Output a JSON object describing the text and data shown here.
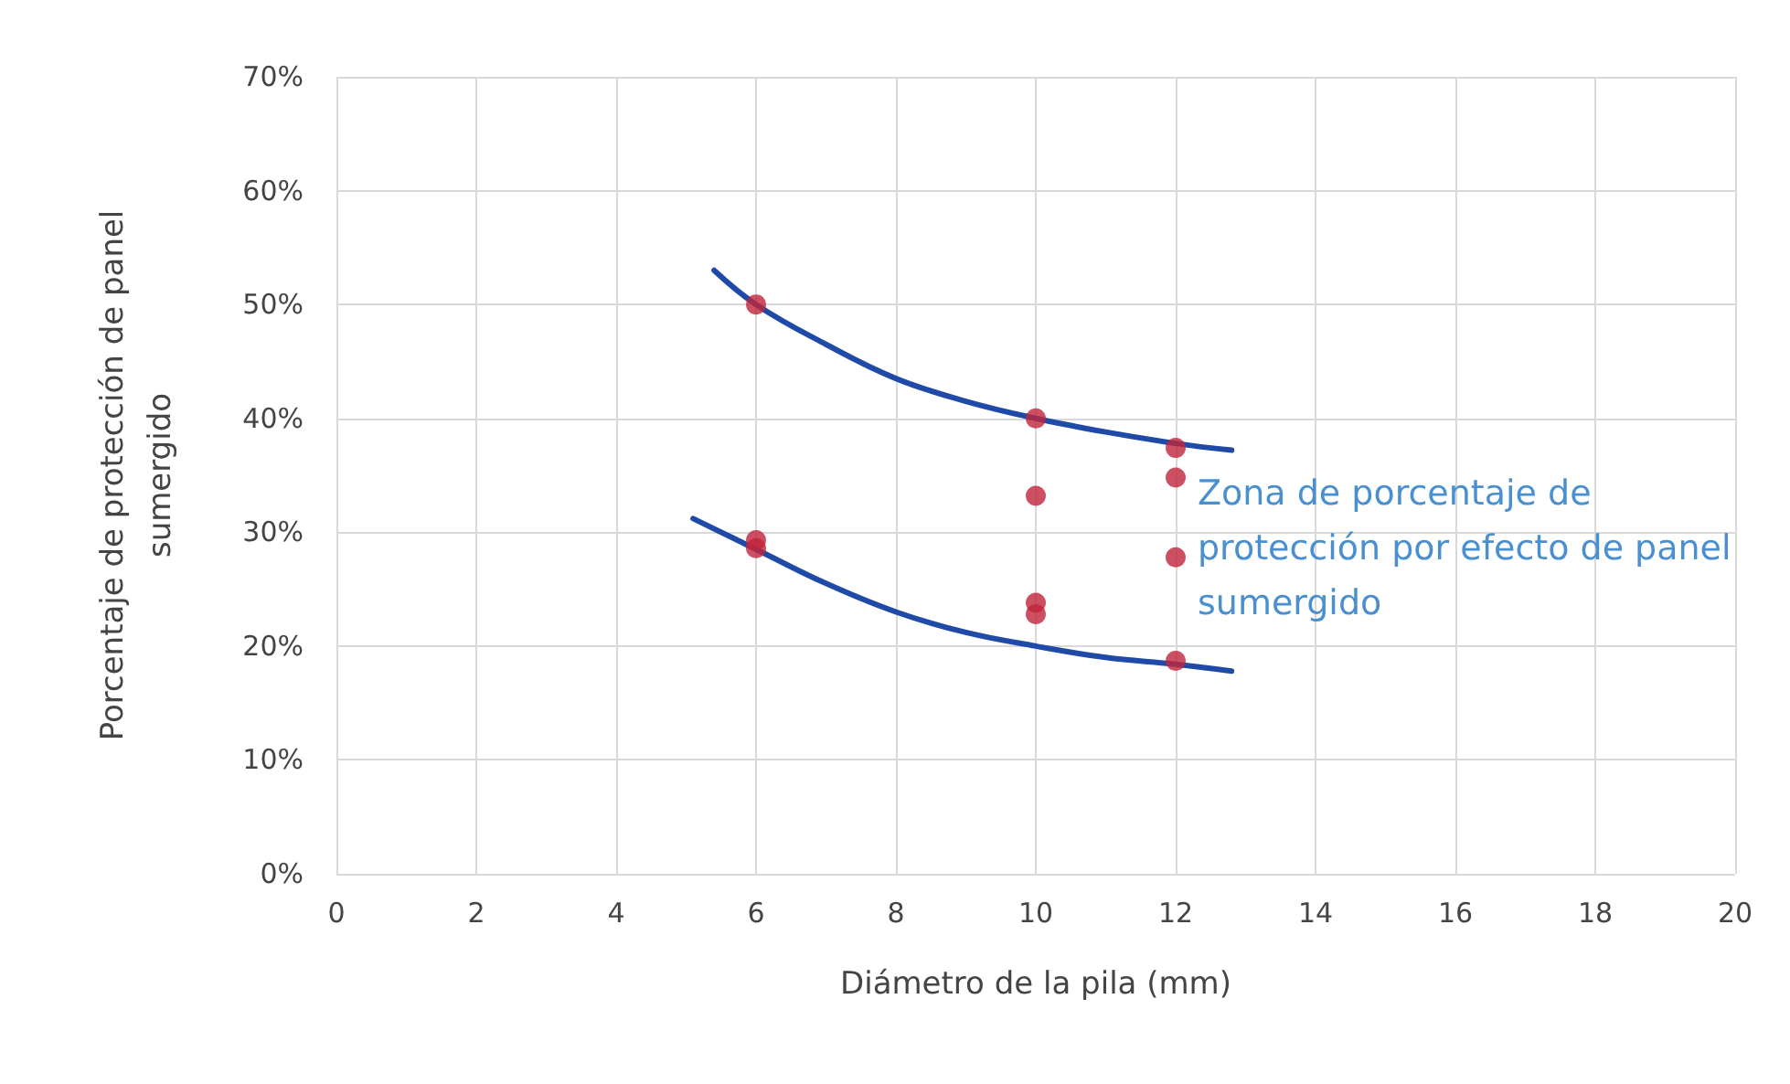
{
  "chart_data": {
    "type": "scatter",
    "xlabel": "Diámetro de la pila (mm)",
    "ylabel": "Porcentaje de protección de panel sumergido",
    "annotations": [
      "Zona de porcentaje de protección por efecto de panel sumergido"
    ],
    "xlim": [
      0,
      20
    ],
    "xticks": [
      0,
      2,
      4,
      6,
      8,
      10,
      12,
      14,
      16,
      18,
      20
    ],
    "ylim": [
      0,
      70
    ],
    "yticks": [
      {
        "value": 0,
        "label": "0%"
      },
      {
        "value": 10,
        "label": "10%"
      },
      {
        "value": 20,
        "label": "20%"
      },
      {
        "value": 30,
        "label": "30%"
      },
      {
        "value": 40,
        "label": "40%"
      },
      {
        "value": 50,
        "label": "50%"
      },
      {
        "value": 60,
        "label": "60%"
      },
      {
        "value": 70,
        "label": "70%"
      }
    ],
    "grid": true,
    "series": [
      {
        "marker": "circle",
        "color": "#c0243b",
        "x": [
          6,
          6,
          6,
          10,
          10,
          10,
          10,
          12,
          12,
          12,
          12
        ],
        "values": [
          50,
          29.3,
          28.6,
          40,
          33.2,
          23.8,
          22.8,
          37.4,
          34.8,
          27.8,
          18.7
        ]
      },
      {
        "type": "line",
        "marker": "none",
        "color": "#1f4aa8",
        "x": [
          5.4,
          6,
          7,
          8,
          9,
          10,
          11,
          12,
          12.8
        ],
        "values": [
          53,
          50,
          46.5,
          43.5,
          41.5,
          40,
          38.8,
          37.8,
          37.2
        ]
      },
      {
        "type": "line",
        "marker": "none",
        "color": "#1f4aa8",
        "x": [
          5.1,
          6,
          7,
          8,
          9,
          10,
          11,
          12,
          12.8
        ],
        "values": [
          31.2,
          28.5,
          25.5,
          23,
          21.2,
          20,
          19,
          18.4,
          17.8
        ]
      }
    ]
  }
}
